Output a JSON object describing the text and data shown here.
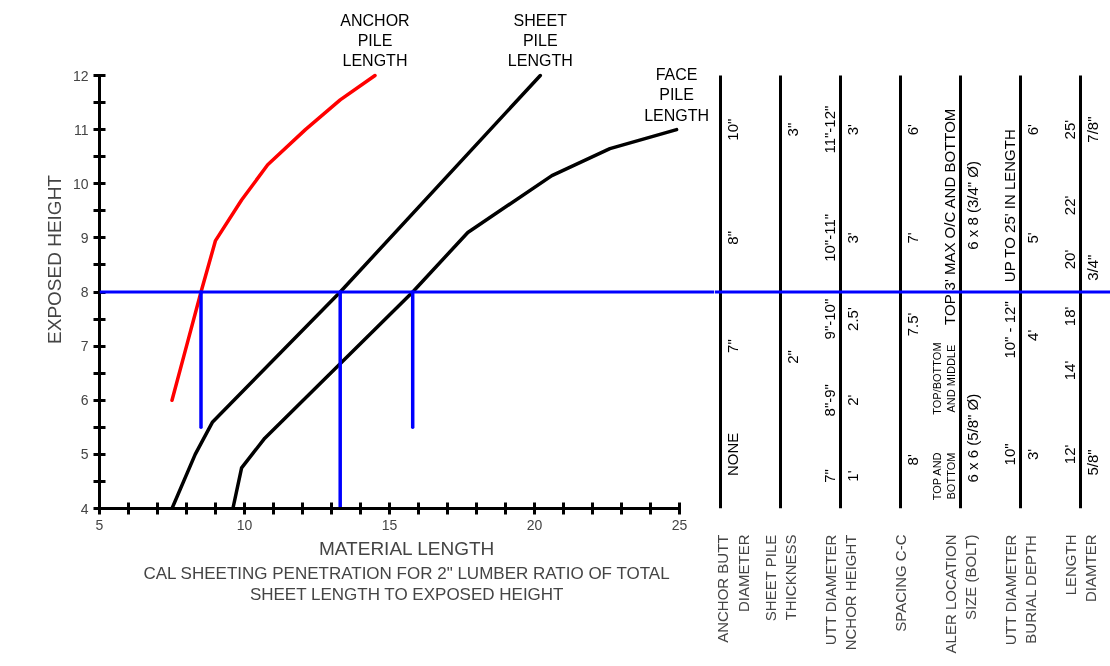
{
  "chart_data": [
    {
      "type": "line",
      "title": "CAL SHEETING PENETRATION FOR 2\" LUMBER RATIO OF TOTAL\nSHEET LENGTH TO EXPOSED HEIGHT",
      "xlabel": "MATERIAL LENGTH",
      "ylabel": "EXPOSED HEIGHT",
      "xlim": [
        5,
        25
      ],
      "ylim": [
        4,
        12
      ],
      "xticks": [
        5,
        {
          "value": 6,
          "label": null
        },
        {
          "value": 7,
          "label": null
        },
        {
          "value": 8,
          "label": null
        },
        {
          "value": 9,
          "label": null
        },
        10,
        {
          "value": 11,
          "label": null
        },
        {
          "value": 12,
          "label": null
        },
        {
          "value": 13,
          "label": null
        },
        {
          "value": 14,
          "label": null
        },
        15,
        {
          "value": 16,
          "label": null
        },
        {
          "value": 17,
          "label": null
        },
        {
          "value": 18,
          "label": null
        },
        {
          "value": 19,
          "label": null
        },
        20,
        {
          "value": 21,
          "label": null
        },
        {
          "value": 22,
          "label": null
        },
        {
          "value": 23,
          "label": null
        },
        {
          "value": 24,
          "label": null
        },
        25
      ],
      "yticks": [
        4,
        {
          "value": 4.5,
          "label": null
        },
        5,
        {
          "value": 5.5,
          "label": null
        },
        6,
        {
          "value": 6.5,
          "label": null
        },
        7,
        {
          "value": 7.5,
          "label": null
        },
        8,
        {
          "value": 8.5,
          "label": null
        },
        9,
        {
          "value": 9.5,
          "label": null
        },
        10,
        {
          "value": 10.5,
          "label": null
        },
        11,
        {
          "value": 11.5,
          "label": null
        },
        12
      ],
      "grid": false,
      "marker": "none",
      "line_style": "solid",
      "series": [
        {
          "name": "ANCHOR\nPILE\nLENGTH",
          "color": "#ff0000",
          "x": [
            7.5,
            8.0,
            8.5,
            9.0,
            9.9,
            10.8,
            12.1,
            13.3,
            14.5
          ],
          "values": [
            6,
            7,
            8,
            8.95,
            9.7,
            10.35,
            11.0,
            11.55,
            12
          ]
        },
        {
          "name": "SHEET\nPILE\nLENGTH",
          "color": "#000000",
          "x": [
            7.5,
            8.3,
            8.9,
            13.3,
            20.2
          ],
          "values": [
            4,
            5,
            5.6,
            8,
            12
          ]
        },
        {
          "name": "FACE\nPILE\nLENGTH",
          "color": "#000000",
          "x": [
            9.6,
            9.9,
            10.7,
            15.8,
            17.7,
            20.6,
            22.6,
            24.9
          ],
          "values": [
            4,
            4.75,
            5.3,
            8,
            9.1,
            10.15,
            10.65,
            11
          ]
        },
        {
          "color": "#0000ff",
          "x": [
            8.5,
            8.5
          ],
          "values": [
            5.5,
            8
          ]
        },
        {
          "color": "#0000ff",
          "x": [
            13.3,
            13.3
          ],
          "values": [
            4,
            8
          ]
        },
        {
          "color": "#0000ff",
          "x": [
            15.8,
            15.8
          ],
          "values": [
            5.5,
            8
          ]
        }
      ],
      "ref_lines": [
        {
          "axis": "y",
          "value": 8,
          "color": "#0000ff"
        }
      ]
    },
    {
      "type": "other",
      "categories": [
        "ANCHOR BUTT\nDIAMETER",
        "SHEET PILE\nTHICKNESS",
        "UTT DIAMETER\nNCHOR HEIGHT",
        "SPACING C-C",
        "ALER LOCATION\nSIZE (BOLT)",
        "UTT DIAMETER\nBURIAL DEPTH",
        "LENGTH\nDIAMTER"
      ],
      "annotations": [
        "10\"",
        "8\"",
        "7\"",
        "NONE",
        "3\"",
        "2\"",
        "11\"-12\"",
        "3'",
        "10\"-11\"",
        "3'",
        "9\"-10\"",
        "2.5'",
        "8\"-9\"",
        "2'",
        "7\"",
        "1'",
        "6'",
        "7'",
        "7.5'",
        "8'",
        "TOP 3' MAX O/C AND BOTTOM",
        "6 x 8 (3/4\" Ø)",
        "TOP/BOTTOM\nAND MIDDLE",
        "TOP AND\nBOTTOM",
        "6 x 6 (5/8\" Ø)",
        "UP TO 25' IN LENGTH",
        "6'",
        "5'",
        "10\" - 12\"",
        "4'",
        "10\"",
        "3'",
        "25'",
        "7/8\"",
        "22'",
        "20'",
        "3/4\"",
        "18'",
        "14'",
        "12'",
        "5/8\""
      ]
    }
  ]
}
